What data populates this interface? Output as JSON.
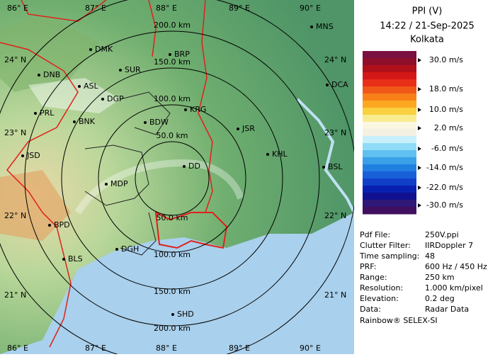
{
  "header": {
    "title": "PPI (V)",
    "time": "14:22 / 21-Sep-2025",
    "station": "Kolkata"
  },
  "colorbar": {
    "labels": [
      "30.0 m/s",
      "18.0 m/s",
      "10.0 m/s",
      "2.0 m/s",
      "-6.0 m/s",
      "-14.0 m/s",
      "-22.0 m/s",
      "-30.0 m/s"
    ]
  },
  "info": {
    "rows": [
      [
        "Pdf File:",
        "250V.ppi"
      ],
      [
        "Clutter Filter:",
        "IIRDoppler 7"
      ],
      [
        "Time sampling:",
        "48"
      ],
      [
        "PRF:",
        "600 Hz / 450 Hz"
      ],
      [
        "Range:",
        "250 km"
      ],
      [
        "Resolution:",
        "1.000 km/pixel"
      ],
      [
        "Elevation:",
        "0.2 deg"
      ],
      [
        "Data:",
        "Radar Data"
      ]
    ],
    "footer": "Rainbow® SELEX-SI"
  },
  "map": {
    "lon_labels": [
      "86° E",
      "87° E",
      "88° E",
      "89° E",
      "90° E"
    ],
    "lat_labels": [
      "24° N",
      "23° N",
      "22° N",
      "21° N"
    ],
    "range_labels": [
      "50.0 km",
      "100.0 km",
      "150.0 km",
      "200.0 km"
    ],
    "cities": [
      "MNS",
      "DMK",
      "BRP",
      "DNB",
      "SUR",
      "ASL",
      "DCA",
      "DGP",
      "PRL",
      "BNK",
      "KRG",
      "BDW",
      "JSR",
      "KHL",
      "JSD",
      "BSL",
      "DD",
      "MDP",
      "BPD",
      "DGH",
      "BLS",
      "SHD"
    ]
  }
}
